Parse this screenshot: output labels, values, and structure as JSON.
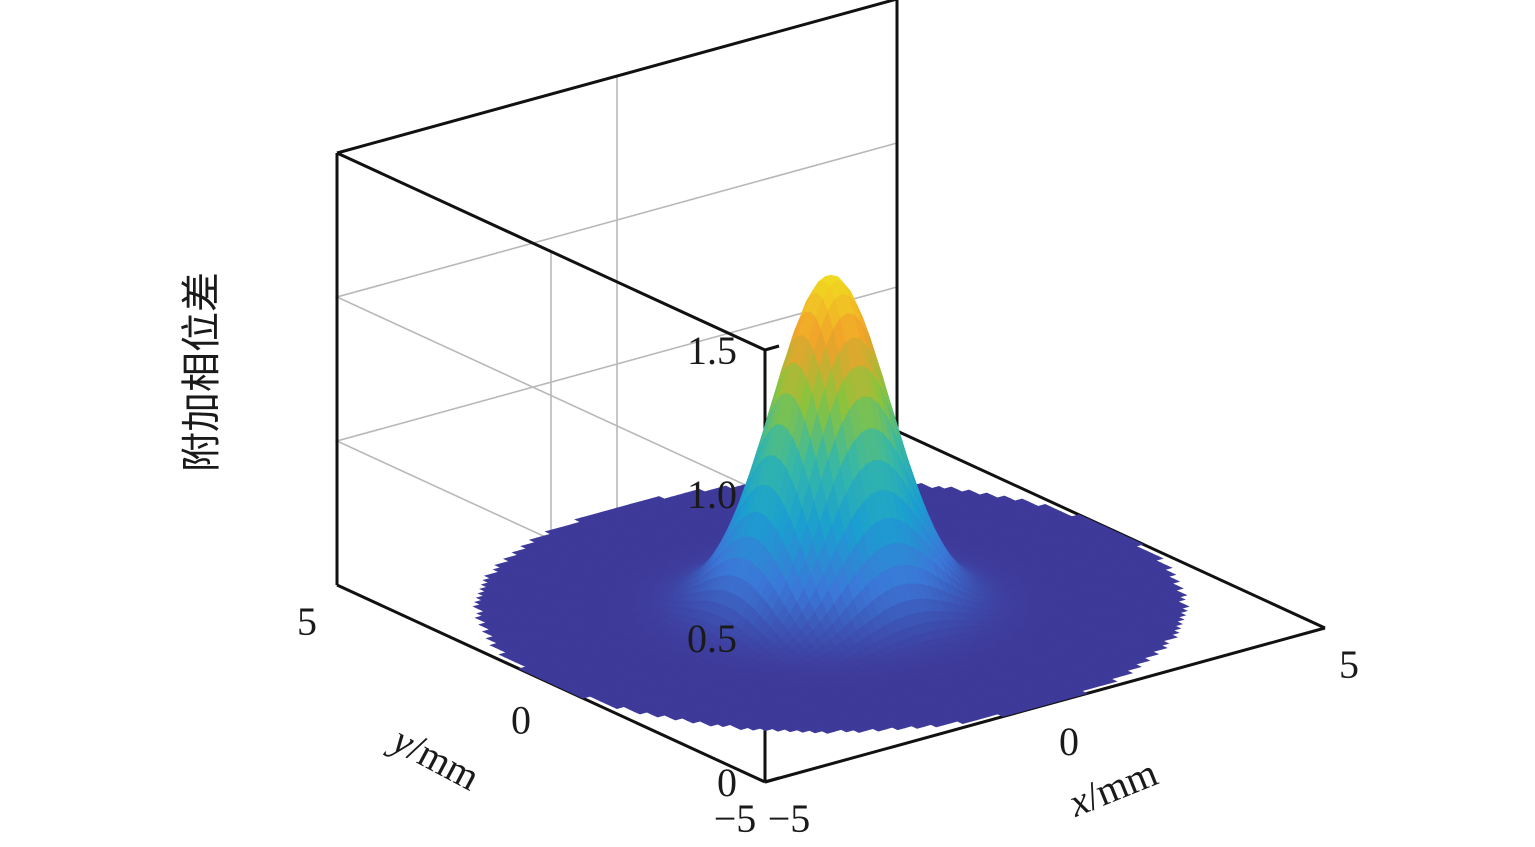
{
  "chart_data": {
    "type": "surface",
    "title": "",
    "xlabel_var": "x",
    "xlabel_unit": "/mm",
    "ylabel_var": "y",
    "ylabel_unit": "/mm",
    "zlabel": "附加相位差",
    "x_ticks": [
      "−5",
      "0",
      "5"
    ],
    "y_ticks": [
      "−5",
      "0",
      "5"
    ],
    "z_ticks": [
      "0",
      "0.5",
      "1.0",
      "1.5"
    ],
    "x_range": [
      -5,
      5
    ],
    "y_range": [
      -5,
      5
    ],
    "z_range": [
      0,
      1.5
    ],
    "grid": true,
    "aperture_radius": 5,
    "surface_function": "gaussian",
    "peak_value": 1.15,
    "peak_center": [
      0,
      0
    ],
    "gaussian_sigma": 0.85,
    "colormap": "parula",
    "colormap_stops": [
      "#3e3a9a",
      "#3b78d8",
      "#1aa0d0",
      "#37b8a5",
      "#8bc43c",
      "#f2a12a",
      "#f0de20"
    ]
  }
}
